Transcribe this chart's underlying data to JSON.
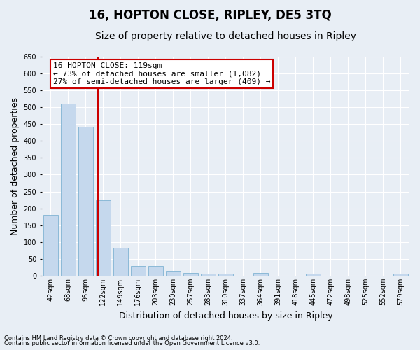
{
  "title": "16, HOPTON CLOSE, RIPLEY, DE5 3TQ",
  "subtitle": "Size of property relative to detached houses in Ripley",
  "xlabel": "Distribution of detached houses by size in Ripley",
  "ylabel": "Number of detached properties",
  "footnote1": "Contains HM Land Registry data © Crown copyright and database right 2024.",
  "footnote2": "Contains public sector information licensed under the Open Government Licence v3.0.",
  "bar_categories": [
    "42sqm",
    "68sqm",
    "95sqm",
    "122sqm",
    "149sqm",
    "176sqm",
    "203sqm",
    "230sqm",
    "257sqm",
    "283sqm",
    "310sqm",
    "337sqm",
    "364sqm",
    "391sqm",
    "418sqm",
    "445sqm",
    "472sqm",
    "498sqm",
    "525sqm",
    "552sqm",
    "579sqm"
  ],
  "bar_values": [
    180,
    510,
    443,
    225,
    83,
    28,
    28,
    15,
    8,
    5,
    5,
    0,
    8,
    0,
    0,
    5,
    0,
    0,
    0,
    0,
    5
  ],
  "bar_color": "#c5d8ed",
  "bar_edgecolor": "#7fb3d3",
  "vline_x_index": 2.72,
  "vline_color": "#cc0000",
  "annotation_line1": "16 HOPTON CLOSE: 119sqm",
  "annotation_line2": "← 73% of detached houses are smaller (1,082)",
  "annotation_line3": "27% of semi-detached houses are larger (409) →",
  "annotation_box_color": "#ffffff",
  "annotation_box_edgecolor": "#cc0000",
  "ylim": [
    0,
    650
  ],
  "yticks": [
    0,
    50,
    100,
    150,
    200,
    250,
    300,
    350,
    400,
    450,
    500,
    550,
    600,
    650
  ],
  "background_color": "#e8eef5",
  "grid_color": "#d0d8e4",
  "title_fontsize": 12,
  "subtitle_fontsize": 10,
  "xlabel_fontsize": 9,
  "ylabel_fontsize": 9,
  "tick_fontsize": 7,
  "annotation_fontsize": 8
}
